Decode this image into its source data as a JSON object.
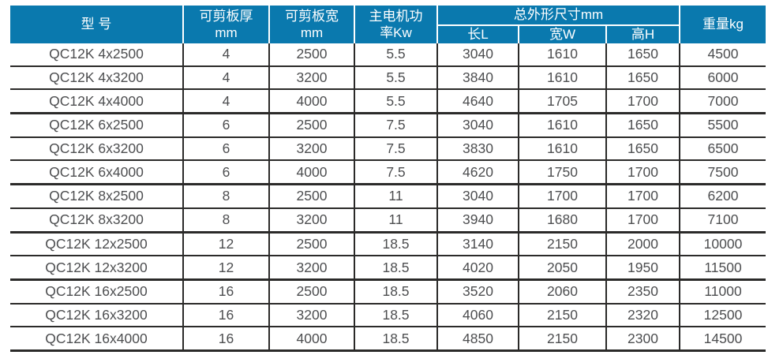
{
  "colors": {
    "header_bg": "#0a79ae",
    "header_text": "#ffffff",
    "body_text": "#4d4e50",
    "grid_line": "#2b2a29"
  },
  "table": {
    "headers": {
      "model": "型 号",
      "shear_thickness": "可剪板厚\nmm",
      "shear_width": "可剪板宽\nmm",
      "motor_power": "主电机功\n率Kw",
      "overall_dimensions": "总外形尺寸mm",
      "dim_length": "长L",
      "dim_width": "宽W",
      "dim_height": "高H",
      "weight": "重量kg"
    },
    "rows": [
      [
        "QC12K 4x2500",
        "4",
        "2500",
        "5.5",
        "3040",
        "1610",
        "1650",
        "4500"
      ],
      [
        "QC12K 4x3200",
        "4",
        "3200",
        "5.5",
        "3840",
        "1610",
        "1650",
        "6000"
      ],
      [
        "QC12K 4x4000",
        "4",
        "4000",
        "5.5",
        "4640",
        "1705",
        "1700",
        "7000"
      ],
      [
        "QC12K 6x2500",
        "6",
        "2500",
        "7.5",
        "3040",
        "1610",
        "1650",
        "5500"
      ],
      [
        "QC12K 6x3200",
        "6",
        "3200",
        "7.5",
        "3830",
        "1610",
        "1650",
        "6500"
      ],
      [
        "QC12K 6x4000",
        "6",
        "4000",
        "7.5",
        "4620",
        "1750",
        "1700",
        "7500"
      ],
      [
        "QC12K 8x2500",
        "8",
        "2500",
        "11",
        "3040",
        "1700",
        "1700",
        "6200"
      ],
      [
        "QC12K 8x3200",
        "8",
        "3200",
        "11",
        "3940",
        "1680",
        "1700",
        "7100"
      ],
      [
        "QC12K 12x2500",
        "12",
        "2500",
        "18.5",
        "3140",
        "2150",
        "2000",
        "10000"
      ],
      [
        "QC12K 12x3200",
        "12",
        "3200",
        "18.5",
        "4020",
        "2050",
        "1950",
        "11500"
      ],
      [
        "QC12K 16x2500",
        "16",
        "2500",
        "18.5",
        "3520",
        "2060",
        "2350",
        "11000"
      ],
      [
        "QC12K 16x3200",
        "16",
        "3200",
        "18.5",
        "4060",
        "2150",
        "2320",
        "12500"
      ],
      [
        "QC12K 16x4000",
        "16",
        "4000",
        "18.5",
        "4850",
        "2150",
        "2300",
        "14500"
      ]
    ]
  }
}
